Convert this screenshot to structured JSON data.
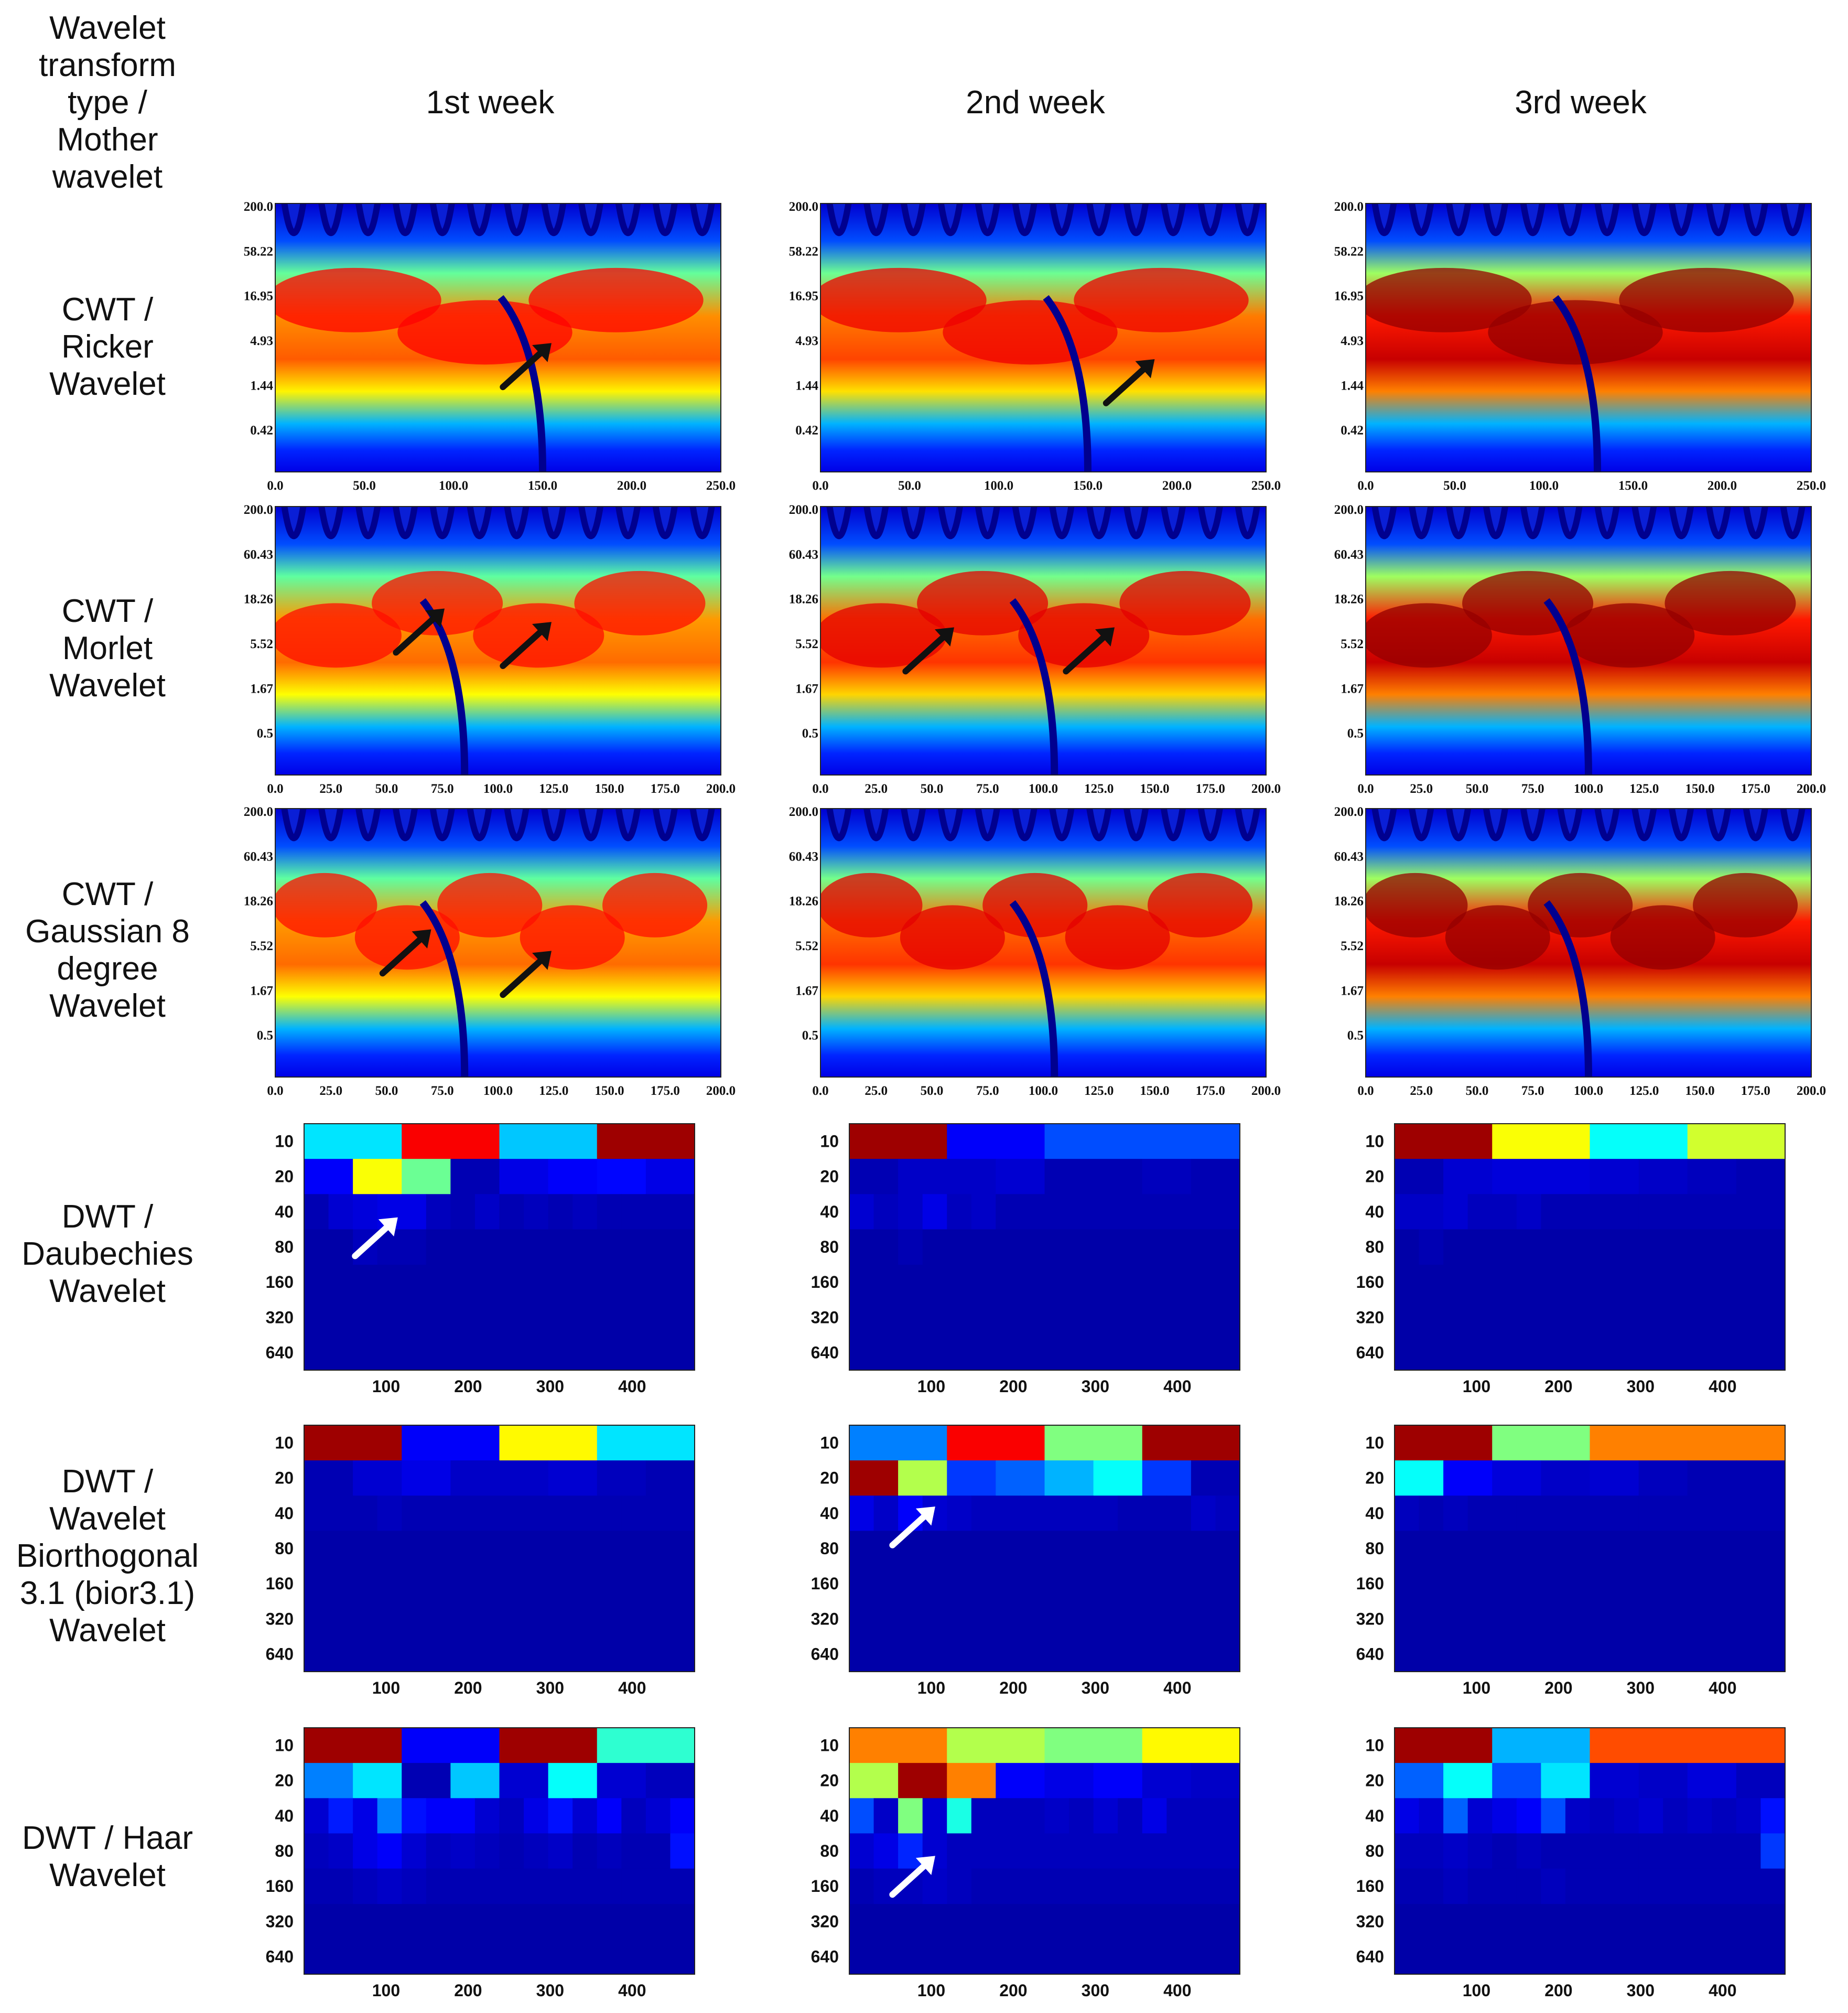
{
  "header": {
    "corner_lines": [
      "Wavelet",
      "transform",
      "type /",
      "Mother",
      "wavelet"
    ],
    "columns": [
      "1st week",
      "2nd week",
      "3rd week"
    ]
  },
  "colors": {
    "background": "#ffffff",
    "arrow_black": "#111111",
    "arrow_white": "#ffffff"
  },
  "chart_data": [
    {
      "row": 0,
      "type": "heatmap",
      "wavelet_lines": [
        "CWT /",
        "Ricker",
        "Wavelet"
      ],
      "yticks": [
        "200.0",
        "58.22",
        "16.95",
        "4.93",
        "1.44",
        "0.42"
      ],
      "xticks": [
        "0.0",
        "50.0",
        "100.0",
        "150.0",
        "200.0",
        "250.0"
      ],
      "xlim": [
        0,
        250
      ],
      "panels": [
        {
          "col": 0,
          "intensity": 0.62,
          "ridge_x": 150,
          "arrows": [
            {
              "x": 0.62,
              "y": 0.52
            }
          ]
        },
        {
          "col": 1,
          "intensity": 0.68,
          "ridge_x": 150,
          "arrows": [
            {
              "x": 0.75,
              "y": 0.58
            }
          ]
        },
        {
          "col": 2,
          "intensity": 1.0,
          "ridge_x": 130,
          "arrows": []
        }
      ]
    },
    {
      "row": 1,
      "type": "heatmap",
      "wavelet_lines": [
        "CWT /",
        "Morlet",
        "Wavelet"
      ],
      "yticks": [
        "200.0",
        "60.43",
        "18.26",
        "5.52",
        "1.67",
        "0.5"
      ],
      "xticks": [
        "0.0",
        "25.0",
        "50.0",
        "75.0",
        "100.0",
        "125.0",
        "150.0",
        "175.0",
        "200.0"
      ],
      "xlim": [
        0,
        200
      ],
      "panels": [
        {
          "col": 0,
          "intensity": 0.58,
          "ridge_x": 85,
          "arrows": [
            {
              "x": 0.38,
              "y": 0.38
            },
            {
              "x": 0.62,
              "y": 0.43
            }
          ]
        },
        {
          "col": 1,
          "intensity": 0.72,
          "ridge_x": 105,
          "arrows": [
            {
              "x": 0.3,
              "y": 0.45
            },
            {
              "x": 0.66,
              "y": 0.45
            }
          ]
        },
        {
          "col": 2,
          "intensity": 1.0,
          "ridge_x": 100,
          "arrows": []
        }
      ]
    },
    {
      "row": 2,
      "type": "heatmap",
      "wavelet_lines": [
        "CWT /",
        "Gaussian 8",
        "degree",
        "Wavelet"
      ],
      "yticks": [
        "200.0",
        "60.43",
        "18.26",
        "5.52",
        "1.67",
        "0.5"
      ],
      "xticks": [
        "0.0",
        "25.0",
        "50.0",
        "75.0",
        "100.0",
        "125.0",
        "150.0",
        "175.0",
        "200.0"
      ],
      "xlim": [
        0,
        200
      ],
      "panels": [
        {
          "col": 0,
          "intensity": 0.58,
          "ridge_x": 85,
          "arrows": [
            {
              "x": 0.35,
              "y": 0.45
            },
            {
              "x": 0.62,
              "y": 0.53
            }
          ]
        },
        {
          "col": 1,
          "intensity": 0.72,
          "ridge_x": 105,
          "arrows": []
        },
        {
          "col": 2,
          "intensity": 1.0,
          "ridge_x": 100,
          "arrows": []
        }
      ]
    },
    {
      "row": 3,
      "type": "heatmap",
      "wavelet_lines": [
        "DWT /",
        "Daubechies",
        "Wavelet"
      ],
      "yticks": [
        "10",
        "20",
        "40",
        "80",
        "160",
        "320",
        "640"
      ],
      "xticks": [
        "100",
        "200",
        "300",
        "400"
      ],
      "panels": [
        {
          "col": 0,
          "levels": [
            {
              "level": 10,
              "values": [
                0.35,
                0.88,
                0.32,
                0.97
              ]
            },
            {
              "level": 20,
              "values": [
                0.12,
                0.62,
                0.48,
                0.05,
                0.1,
                0.12,
                0.13,
                0.1
              ]
            },
            {
              "level": 40,
              "values": [
                0.05,
                0.08,
                0.09,
                0.1,
                0.1,
                0.06,
                0.05,
                0.07,
                0.05,
                0.06,
                0.05,
                0.06,
                0.05,
                0.05,
                0.05,
                0.05
              ]
            },
            {
              "level": 80,
              "values": [
                0.04,
                0.04,
                0.06,
                0.05,
                0.05,
                0.04,
                0.04,
                0.04,
                0.04,
                0.04,
                0.04,
                0.04,
                0.04,
                0.04,
                0.04,
                0.04
              ]
            }
          ],
          "arrows": [
            {
              "x": 0.24,
              "y": 0.38
            }
          ]
        },
        {
          "col": 1,
          "levels": [
            {
              "level": 10,
              "values": [
                0.97,
                0.12,
                0.2,
                0.2
              ]
            },
            {
              "level": 20,
              "values": [
                0.05,
                0.07,
                0.07,
                0.08,
                0.05,
                0.05,
                0.06,
                0.05
              ]
            },
            {
              "level": 40,
              "values": [
                0.08,
                0.06,
                0.07,
                0.1,
                0.06,
                0.07,
                0.05,
                0.05,
                0.05,
                0.05,
                0.05,
                0.05,
                0.05,
                0.05,
                0.05,
                0.05
              ]
            },
            {
              "level": 80,
              "values": [
                0.04,
                0.04,
                0.05,
                0.04,
                0.04,
                0.04,
                0.04,
                0.04,
                0.04,
                0.04,
                0.04,
                0.04,
                0.04,
                0.04,
                0.04,
                0.04
              ]
            }
          ],
          "arrows": []
        },
        {
          "col": 2,
          "levels": [
            {
              "level": 10,
              "values": [
                0.97,
                0.62,
                0.38,
                0.58
              ]
            },
            {
              "level": 20,
              "values": [
                0.05,
                0.08,
                0.09,
                0.09,
                0.08,
                0.07,
                0.06,
                0.05
              ]
            },
            {
              "level": 40,
              "values": [
                0.07,
                0.07,
                0.08,
                0.06,
                0.06,
                0.07,
                0.05,
                0.05,
                0.05,
                0.05,
                0.05,
                0.05,
                0.05,
                0.05,
                0.05,
                0.05
              ]
            },
            {
              "level": 80,
              "values": [
                0.04,
                0.05,
                0.04,
                0.04,
                0.04,
                0.04,
                0.04,
                0.04,
                0.04,
                0.04,
                0.04,
                0.04,
                0.04,
                0.04,
                0.04,
                0.04
              ]
            }
          ],
          "arrows": []
        }
      ]
    },
    {
      "row": 4,
      "type": "heatmap",
      "wavelet_lines": [
        "DWT /",
        "Wavelet",
        "Biorthogonal",
        "3.1 (bior3.1)",
        "Wavelet"
      ],
      "yticks": [
        "10",
        "20",
        "40",
        "80",
        "160",
        "320",
        "640"
      ],
      "xticks": [
        "100",
        "200",
        "300",
        "400"
      ],
      "panels": [
        {
          "col": 0,
          "levels": [
            {
              "level": 10,
              "values": [
                0.97,
                0.12,
                0.63,
                0.35
              ]
            },
            {
              "level": 20,
              "values": [
                0.05,
                0.08,
                0.1,
                0.07,
                0.07,
                0.08,
                0.06,
                0.05
              ]
            },
            {
              "level": 40,
              "values": [
                0.05,
                0.05,
                0.05,
                0.06,
                0.05,
                0.05,
                0.05,
                0.05,
                0.05,
                0.05,
                0.05,
                0.05,
                0.05,
                0.05,
                0.05,
                0.05
              ]
            },
            {
              "level": 80,
              "values": [
                0.04,
                0.04,
                0.04,
                0.04,
                0.04,
                0.04,
                0.04,
                0.04,
                0.04,
                0.04,
                0.04,
                0.04,
                0.04,
                0.04,
                0.04,
                0.04
              ]
            }
          ],
          "arrows": []
        },
        {
          "col": 1,
          "levels": [
            {
              "level": 10,
              "values": [
                0.25,
                0.88,
                0.5,
                0.97
              ]
            },
            {
              "level": 20,
              "values": [
                0.97,
                0.55,
                0.18,
                0.22,
                0.3,
                0.38,
                0.18,
                0.05
              ]
            },
            {
              "level": 40,
              "values": [
                0.1,
                0.07,
                0.12,
                0.08,
                0.07,
                0.06,
                0.06,
                0.06,
                0.06,
                0.06,
                0.06,
                0.05,
                0.05,
                0.05,
                0.07,
                0.06
              ]
            },
            {
              "level": 80,
              "values": [
                0.04,
                0.04,
                0.04,
                0.04,
                0.04,
                0.04,
                0.04,
                0.04,
                0.04,
                0.04,
                0.04,
                0.04,
                0.04,
                0.04,
                0.04,
                0.04
              ]
            }
          ],
          "arrows": [
            {
              "x": 0.22,
              "y": 0.33
            }
          ]
        },
        {
          "col": 2,
          "levels": [
            {
              "level": 10,
              "values": [
                0.97,
                0.5,
                0.75,
                0.75
              ]
            },
            {
              "level": 20,
              "values": [
                0.38,
                0.12,
                0.09,
                0.07,
                0.08,
                0.06,
                0.05,
                0.05
              ]
            },
            {
              "level": 40,
              "values": [
                0.06,
                0.05,
                0.06,
                0.05,
                0.05,
                0.05,
                0.05,
                0.05,
                0.05,
                0.05,
                0.05,
                0.05,
                0.05,
                0.05,
                0.05,
                0.05
              ]
            },
            {
              "level": 80,
              "values": [
                0.04,
                0.04,
                0.04,
                0.04,
                0.04,
                0.04,
                0.04,
                0.04,
                0.04,
                0.04,
                0.04,
                0.04,
                0.04,
                0.04,
                0.04,
                0.04
              ]
            }
          ],
          "arrows": []
        }
      ]
    },
    {
      "row": 5,
      "type": "heatmap",
      "wavelet_lines": [
        "DWT / Haar",
        "Wavelet"
      ],
      "yticks": [
        "10",
        "20",
        "40",
        "80",
        "160",
        "320",
        "640"
      ],
      "xticks": [
        "100",
        "200",
        "300",
        "400"
      ],
      "panels": [
        {
          "col": 0,
          "levels": [
            {
              "level": 10,
              "values": [
                0.97,
                0.12,
                0.97,
                0.42
              ]
            },
            {
              "level": 20,
              "values": [
                0.25,
                0.35,
                0.05,
                0.32,
                0.08,
                0.38,
                0.08,
                0.06
              ]
            },
            {
              "level": 40,
              "values": [
                0.08,
                0.15,
                0.1,
                0.25,
                0.14,
                0.12,
                0.12,
                0.08,
                0.06,
                0.1,
                0.14,
                0.08,
                0.12,
                0.06,
                0.08,
                0.12
              ]
            },
            {
              "level": 80,
              "values": [
                0.06,
                0.07,
                0.1,
                0.12,
                0.08,
                0.06,
                0.07,
                0.06,
                0.05,
                0.06,
                0.07,
                0.05,
                0.06,
                0.05,
                0.05,
                0.14
              ]
            },
            {
              "level": 160,
              "values": [
                0.05,
                0.05,
                0.06,
                0.07,
                0.06,
                0.05,
                0.05,
                0.05,
                0.05,
                0.05,
                0.05,
                0.05,
                0.05,
                0.05,
                0.05,
                0.05
              ]
            }
          ],
          "arrows": []
        },
        {
          "col": 1,
          "levels": [
            {
              "level": 10,
              "values": [
                0.75,
                0.55,
                0.5,
                0.63
              ]
            },
            {
              "level": 20,
              "values": [
                0.55,
                0.97,
                0.75,
                0.12,
                0.1,
                0.12,
                0.08,
                0.07
              ]
            },
            {
              "level": 40,
              "values": [
                0.2,
                0.07,
                0.5,
                0.08,
                0.4,
                0.06,
                0.06,
                0.06,
                0.07,
                0.06,
                0.08,
                0.06,
                0.1,
                0.06,
                0.06,
                0.06
              ]
            },
            {
              "level": 80,
              "values": [
                0.08,
                0.1,
                0.16,
                0.08,
                0.06,
                0.06,
                0.06,
                0.06,
                0.06,
                0.06,
                0.06,
                0.06,
                0.06,
                0.06,
                0.06,
                0.06
              ]
            },
            {
              "level": 160,
              "values": [
                0.05,
                0.06,
                0.06,
                0.07,
                0.06,
                0.05,
                0.05,
                0.05,
                0.05,
                0.05,
                0.05,
                0.05,
                0.05,
                0.05,
                0.05,
                0.05
              ]
            }
          ],
          "arrows": [
            {
              "x": 0.22,
              "y": 0.52
            }
          ]
        },
        {
          "col": 2,
          "levels": [
            {
              "level": 10,
              "values": [
                0.97,
                0.3,
                0.8,
                0.8
              ]
            },
            {
              "level": 20,
              "values": [
                0.22,
                0.38,
                0.2,
                0.35,
                0.08,
                0.07,
                0.09,
                0.06
              ]
            },
            {
              "level": 40,
              "values": [
                0.1,
                0.08,
                0.22,
                0.08,
                0.1,
                0.12,
                0.2,
                0.07,
                0.06,
                0.07,
                0.08,
                0.06,
                0.07,
                0.06,
                0.07,
                0.14
              ]
            },
            {
              "level": 80,
              "values": [
                0.06,
                0.06,
                0.07,
                0.06,
                0.05,
                0.06,
                0.05,
                0.05,
                0.05,
                0.05,
                0.05,
                0.05,
                0.05,
                0.05,
                0.05,
                0.18
              ]
            },
            {
              "level": 160,
              "values": [
                0.05,
                0.05,
                0.06,
                0.05,
                0.05,
                0.05,
                0.06,
                0.05,
                0.05,
                0.05,
                0.05,
                0.05,
                0.05,
                0.05,
                0.05,
                0.05
              ]
            }
          ],
          "arrows": []
        }
      ]
    }
  ]
}
